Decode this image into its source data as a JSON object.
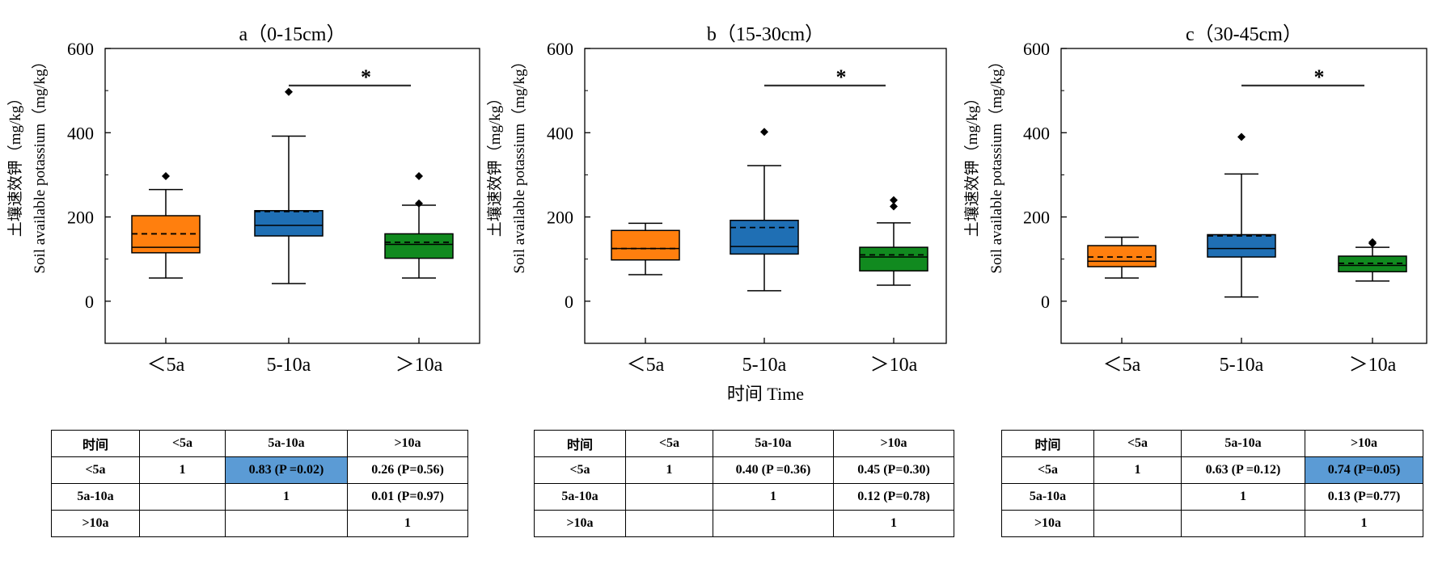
{
  "chart_data": [
    {
      "type": "box",
      "title": "a（0-15cm）",
      "ylabel_cn": "土壤速效钾（mg/kg）",
      "ylabel_en": "Soil available potassium（mg/kg）",
      "ylim": [
        -100,
        600
      ],
      "yticks": [
        0,
        200,
        400,
        600
      ],
      "categories": [
        "＜5a",
        "5-10a",
        "＞10a"
      ],
      "colors": [
        "#ff7f0e",
        "#1f6fb4",
        "#118a1f"
      ],
      "boxes": [
        {
          "whisker_low": 55,
          "q1": 115,
          "median": 128,
          "mean": 160,
          "q3": 203,
          "whisker_high": 265,
          "outliers": [
            297
          ]
        },
        {
          "whisker_low": 42,
          "q1": 155,
          "median": 180,
          "mean": 213,
          "q3": 215,
          "whisker_high": 392,
          "outliers": [
            497
          ]
        },
        {
          "whisker_low": 55,
          "q1": 102,
          "median": 135,
          "mean": 140,
          "q3": 160,
          "whisker_high": 228,
          "outliers": [
            232,
            297
          ]
        }
      ],
      "significance": {
        "from": 1,
        "to": 2,
        "y": 512,
        "label": "*"
      }
    },
    {
      "type": "box",
      "title": "b（15-30cm）",
      "ylabel_cn": "土壤速效钾（mg/kg）",
      "ylabel_en": "Soil available potassium（mg/kg）",
      "xlabel": "时间 Time",
      "ylim": [
        -100,
        600
      ],
      "yticks": [
        0,
        200,
        400,
        600
      ],
      "categories": [
        "＜5a",
        "5-10a",
        "＞10a"
      ],
      "colors": [
        "#ff7f0e",
        "#1f6fb4",
        "#118a1f"
      ],
      "boxes": [
        {
          "whisker_low": 63,
          "q1": 98,
          "median": 125,
          "mean": 125,
          "q3": 168,
          "whisker_high": 185,
          "outliers": []
        },
        {
          "whisker_low": 25,
          "q1": 112,
          "median": 130,
          "mean": 175,
          "q3": 192,
          "whisker_high": 322,
          "outliers": [
            402
          ]
        },
        {
          "whisker_low": 38,
          "q1": 72,
          "median": 105,
          "mean": 110,
          "q3": 128,
          "whisker_high": 186,
          "outliers": [
            225,
            240
          ]
        }
      ],
      "significance": {
        "from": 1,
        "to": 2,
        "y": 512,
        "label": "*"
      }
    },
    {
      "type": "box",
      "title": "c（30-45cm）",
      "ylabel_cn": "土壤速效钾（mg/kg）",
      "ylabel_en": "Soil available potassium（mg/kg）",
      "ylim": [
        -100,
        600
      ],
      "yticks": [
        0,
        200,
        400,
        600
      ],
      "categories": [
        "＜5a",
        "5-10a",
        "＞10a"
      ],
      "colors": [
        "#ff7f0e",
        "#1f6fb4",
        "#118a1f"
      ],
      "boxes": [
        {
          "whisker_low": 55,
          "q1": 82,
          "median": 95,
          "mean": 105,
          "q3": 132,
          "whisker_high": 152,
          "outliers": []
        },
        {
          "whisker_low": 10,
          "q1": 105,
          "median": 125,
          "mean": 155,
          "q3": 158,
          "whisker_high": 302,
          "outliers": [
            390
          ]
        },
        {
          "whisker_low": 48,
          "q1": 70,
          "median": 85,
          "mean": 90,
          "q3": 107,
          "whisker_high": 128,
          "outliers": [
            137,
            140
          ]
        }
      ],
      "significance": {
        "from": 1,
        "to": 2,
        "y": 512,
        "label": "*"
      }
    }
  ],
  "tables": [
    {
      "header": [
        "时间",
        "<5a",
        "5a-10a",
        ">10a"
      ],
      "rows": [
        [
          "<5a",
          "1",
          "0.83 (P =0.02)",
          "0.26 (P=0.56)"
        ],
        [
          "5a-10a",
          "",
          "1",
          "0.01 (P=0.97)"
        ],
        [
          ">10a",
          "",
          "",
          "1"
        ]
      ],
      "highlight": [
        [
          0,
          2
        ]
      ]
    },
    {
      "header": [
        "时间",
        "<5a",
        "5a-10a",
        ">10a"
      ],
      "rows": [
        [
          "<5a",
          "1",
          "0.40 (P =0.36)",
          "0.45 (P=0.30)"
        ],
        [
          "5a-10a",
          "",
          "1",
          "0.12 (P=0.78)"
        ],
        [
          ">10a",
          "",
          "",
          "1"
        ]
      ],
      "highlight": []
    },
    {
      "header": [
        "时间",
        "<5a",
        "5a-10a",
        ">10a"
      ],
      "rows": [
        [
          "<5a",
          "1",
          "0.63 (P =0.12)",
          "0.74 (P=0.05)"
        ],
        [
          "5a-10a",
          "",
          "1",
          "0.13 (P=0.77)"
        ],
        [
          ">10a",
          "",
          "",
          "1"
        ]
      ],
      "highlight": [
        [
          0,
          3
        ]
      ]
    }
  ]
}
